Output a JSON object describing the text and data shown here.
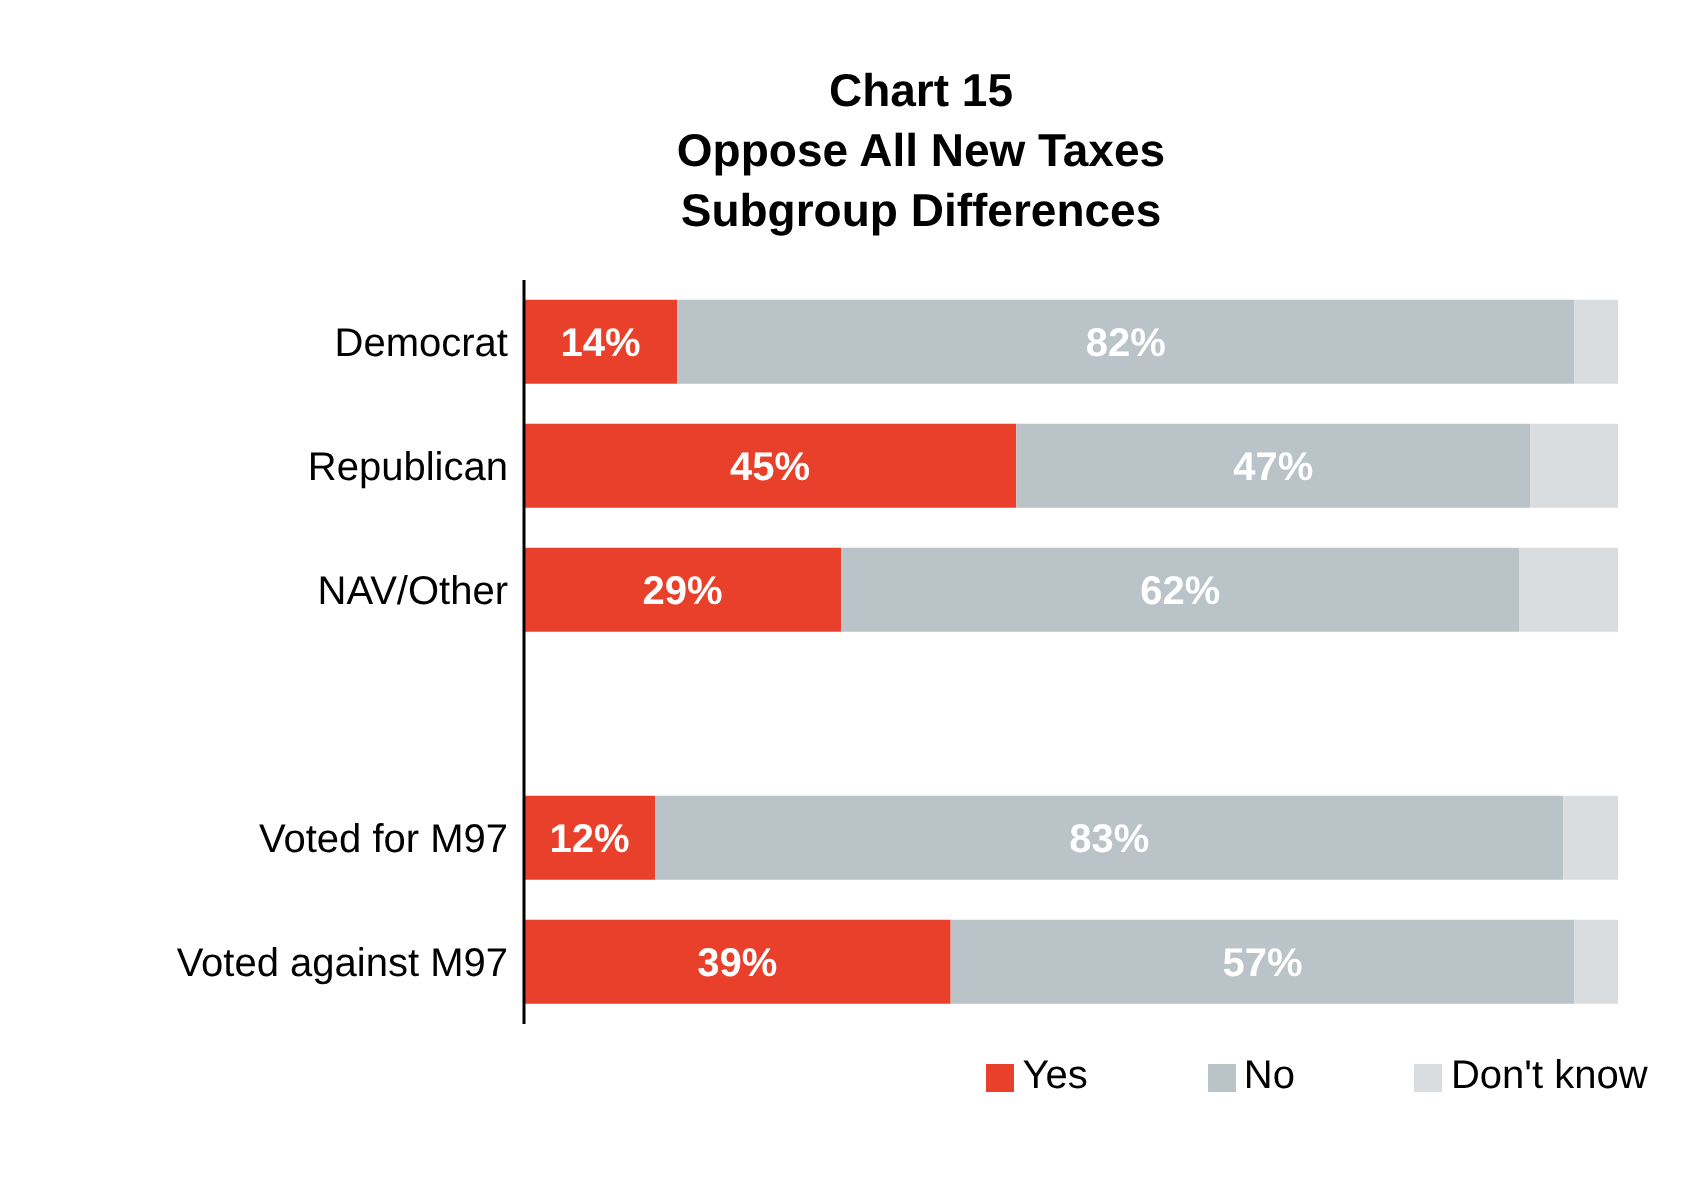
{
  "chart_data": {
    "type": "bar",
    "orientation": "horizontal",
    "stacked": true,
    "title": "Chart 15\nOppose All New Taxes\nSubgroup Differences",
    "categories": [
      "Democrat",
      "Republican",
      "NAV/Other",
      null,
      "Voted for M97",
      "Voted against M97"
    ],
    "xlim": [
      0,
      100
    ],
    "tick_labels": "y",
    "legend": "bottom",
    "grid": false,
    "series": [
      {
        "name": "Yes",
        "color": "#e8402a",
        "values": [
          14,
          45,
          29,
          null,
          12,
          39
        ],
        "value_labels": [
          "14%",
          "45%",
          "29%",
          null,
          "12%",
          "39%"
        ]
      },
      {
        "name": "No",
        "color": "#b9c3c8",
        "values": [
          82,
          47,
          62,
          null,
          83,
          57
        ],
        "value_labels": [
          "82%",
          "47%",
          "62%",
          null,
          "83%",
          "57%"
        ]
      },
      {
        "name": "Don't know",
        "color": "#d9dde0",
        "values": [
          4,
          8,
          9,
          null,
          5,
          4
        ]
      }
    ]
  }
}
